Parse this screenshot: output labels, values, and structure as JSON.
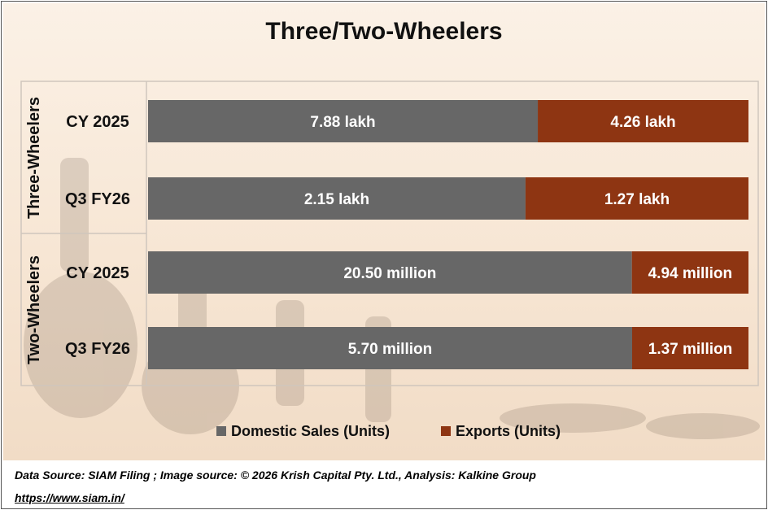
{
  "title": "Three/Two-Wheelers",
  "footer": {
    "source": "Data Source: SIAM Filing ; Image source: © 2026 Krish Capital Pty. Ltd., Analysis: Kalkine Group",
    "link": "https://www.siam.in/"
  },
  "colors": {
    "domestic": "#676767",
    "exports": "#8e3512",
    "background": "#f7e6d4"
  },
  "chart_data": {
    "type": "bar",
    "orientation": "horizontal",
    "stacking": "percent",
    "title": "Three/Two-Wheelers",
    "groups": [
      {
        "name": "Three-Wheelers",
        "categories": [
          "CY 2025",
          "Q3 FY26"
        ]
      },
      {
        "name": "Two-Wheelers",
        "categories": [
          "CY 2025",
          "Q3 FY26"
        ]
      }
    ],
    "categories": [
      "CY 2025",
      "Q3 FY26",
      "CY 2025",
      "Q3 FY26"
    ],
    "series": [
      {
        "name": "Domestic Sales (Units)",
        "values": [
          7.88,
          2.15,
          20.5,
          5.7
        ],
        "labels": [
          "7.88 lakh",
          "2.15 lakh",
          "20.50 million",
          "5.70 million"
        ]
      },
      {
        "name": "Exports (Units)",
        "values": [
          4.26,
          1.27,
          4.94,
          1.37
        ],
        "labels": [
          "4.26 lakh",
          "1.27 lakh",
          "4.94 million",
          "1.37 million"
        ]
      }
    ],
    "legend": "bottom",
    "grid": false
  }
}
